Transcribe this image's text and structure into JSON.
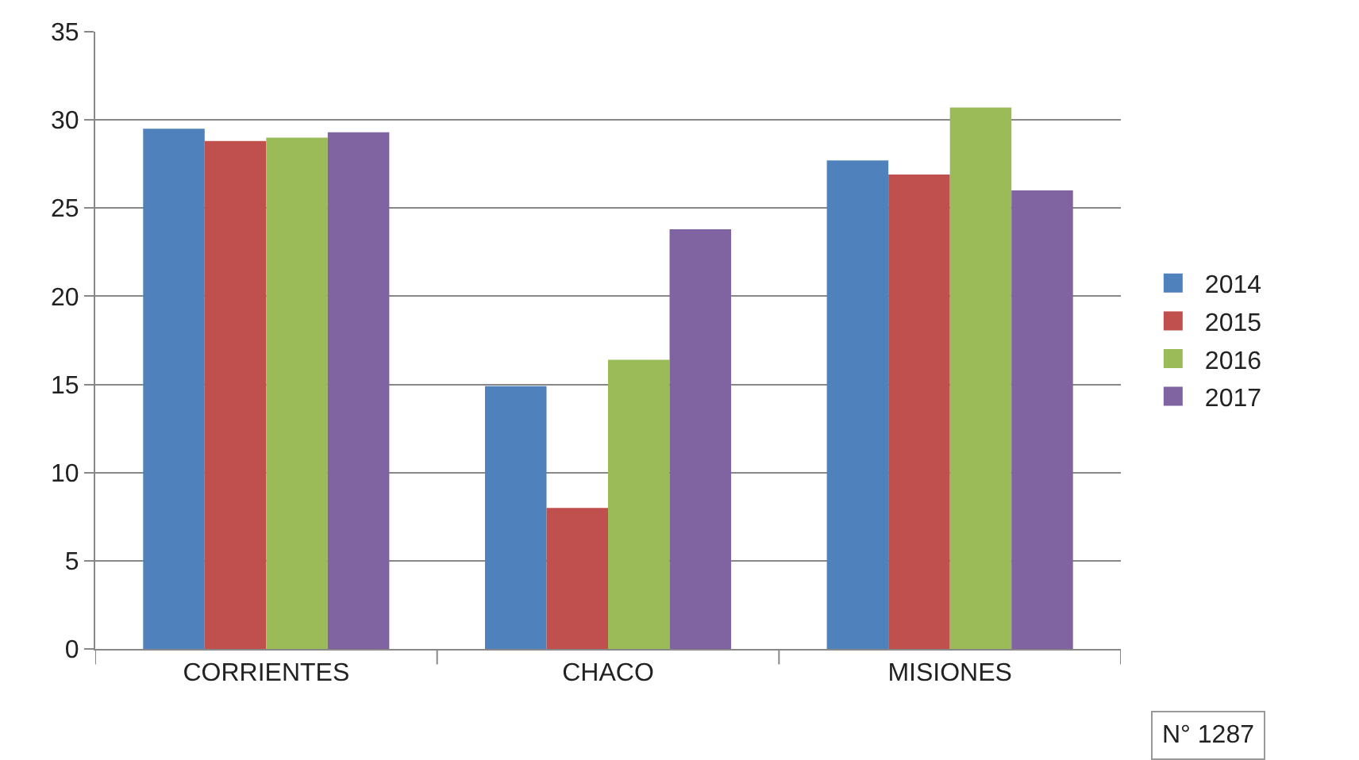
{
  "chart_data": {
    "type": "bar",
    "categories": [
      "CORRIENTES",
      "CHACO",
      "MISIONES"
    ],
    "series": [
      {
        "name": "2014",
        "color": "#4f81bd",
        "values": [
          29.5,
          14.9,
          27.7
        ]
      },
      {
        "name": "2015",
        "color": "#c0504d",
        "values": [
          28.8,
          8.0,
          26.9
        ]
      },
      {
        "name": "2016",
        "color": "#9bbb59",
        "values": [
          29.0,
          16.4,
          30.7
        ]
      },
      {
        "name": "2017",
        "color": "#8064a2",
        "values": [
          29.3,
          23.8,
          26.0
        ]
      }
    ],
    "ylim": [
      0,
      35
    ],
    "yticks": [
      0,
      5,
      10,
      15,
      20,
      25,
      30,
      35
    ],
    "grid": "y",
    "legend": "right",
    "annotations": [
      "N° 1287"
    ]
  }
}
